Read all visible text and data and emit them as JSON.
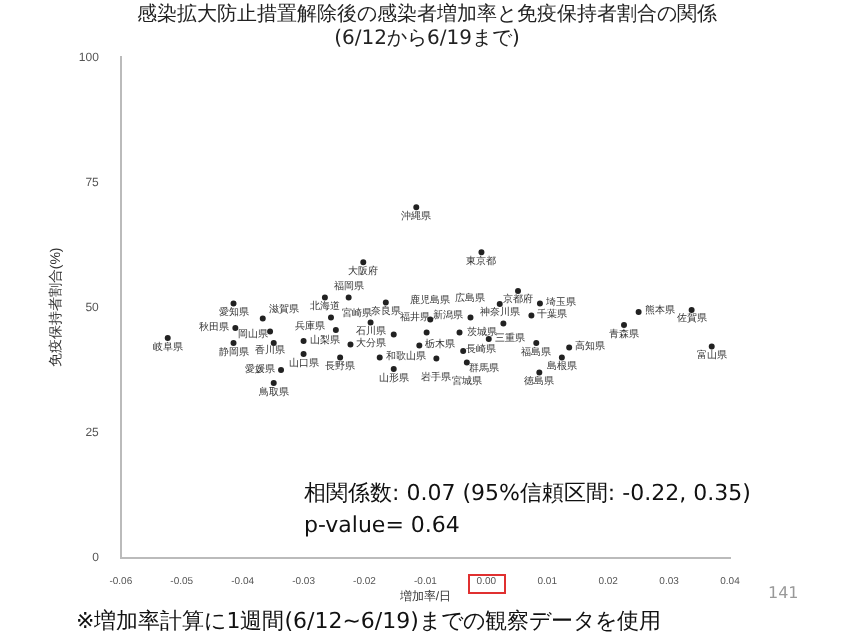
{
  "chart_data": {
    "type": "scatter",
    "title": "感染拡大防止措置解除後の感染者増加率と免疫保持者割合の関係",
    "subtitle": "(6/12から6/19まで)",
    "xlabel": "増加率/日",
    "ylabel": "免疫保持者割合(%)",
    "xlim": [
      -0.06,
      0.04
    ],
    "xticks": [
      {
        "value": -0.06,
        "label": "-0.06"
      },
      {
        "value": -0.05,
        "label": "-0.05"
      },
      {
        "value": -0.04,
        "label": "-0.04"
      },
      {
        "value": -0.03,
        "label": "-0.03"
      },
      {
        "value": -0.02,
        "label": "-0.02"
      },
      {
        "value": -0.01,
        "label": "-0.01"
      },
      {
        "value": 0,
        "label": "0.00"
      },
      {
        "value": 0.01,
        "label": "0.01"
      },
      {
        "value": 0.02,
        "label": "0.02"
      },
      {
        "value": 0.03,
        "label": "0.03"
      },
      {
        "value": 0.04,
        "label": "0.04"
      }
    ],
    "ylim": [
      0,
      100
    ],
    "yticks": [
      0,
      25,
      50,
      75,
      100
    ],
    "grid": false,
    "legend": false,
    "marker": "circle",
    "x": [
      -0.0115,
      -0.0202,
      -0.0008,
      -0.0265,
      -0.0226,
      -0.0165,
      -0.0255,
      -0.019,
      -0.0247,
      -0.0223,
      -0.024,
      -0.0175,
      -0.0152,
      -0.0152,
      -0.011,
      -0.0092,
      -0.0098,
      -0.0044,
      -0.0082,
      -0.0038,
      -0.0032,
      0.0004,
      -0.0026,
      0.0022,
      0.0052,
      0.0088,
      0.0074,
      0.0028,
      0.0082,
      0.0136,
      0.0124,
      0.0087,
      -0.0523,
      -0.0415,
      -0.0367,
      -0.0412,
      -0.0355,
      -0.0415,
      -0.0349,
      -0.03,
      -0.03,
      -0.0337,
      -0.0349,
      0.025,
      0.0226,
      0.0337,
      0.037
    ],
    "values": [
      70,
      59,
      61,
      52,
      52,
      51,
      48,
      47,
      45.5,
      42.6,
      40,
      40,
      37.7,
      44.6,
      42.4,
      47.6,
      45,
      45,
      39.8,
      41.3,
      39,
      43.7,
      48,
      50.7,
      53.3,
      50.8,
      48.4,
      46.8,
      42.9,
      42,
      40,
      37,
      43.9,
      50.8,
      47.8,
      45.9,
      45.2,
      42.9,
      42.9,
      43.3,
      40.7,
      37.5,
      34.9,
      49.1,
      46.5,
      49.5,
      42.2
    ],
    "value_labels": [
      "沖縄県",
      "大阪府",
      "東京都",
      "北海道",
      "福岡県",
      "奈良県",
      "兵庫県",
      "石川県",
      "宮崎県",
      "大分県",
      "長野県",
      "和歌山県",
      "山形県",
      "福井県",
      "栃木県",
      "鹿児島県",
      "新潟県",
      "長崎県",
      "岩手県",
      "群馬県",
      "宮城県",
      "三重県",
      "広島県",
      "神奈川県",
      "京都府",
      "埼玉県",
      "千葉県",
      "茨城県",
      "福島県",
      "高知県",
      "島根県",
      "徳島県",
      "岐阜県",
      "愛知県",
      "滋賀県",
      "秋田県",
      "香川県",
      "静岡県",
      "岡山県",
      "山梨県",
      "山口県",
      "愛媛県",
      "鳥取県",
      "熊本県",
      "青森県",
      "佐賀県",
      "富山県"
    ],
    "color": "#222222",
    "annotations": [
      "相関係数: 0.07 (95%信頼区間: -0.22, 0.35)",
      "p-value= 0.64",
      "※増加率計算に1週間(6/12~6/19)までの観察データを使用",
      "141"
    ]
  }
}
